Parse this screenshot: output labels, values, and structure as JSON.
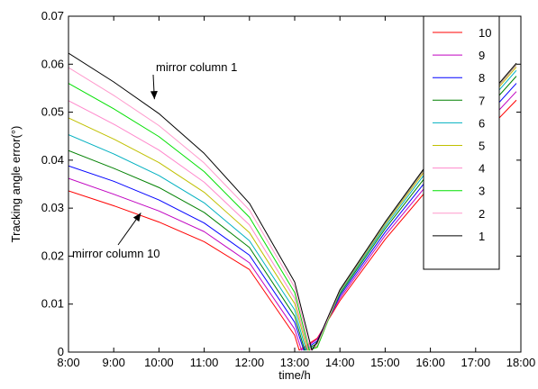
{
  "chart_data": {
    "type": "line",
    "xlabel": "time/h",
    "ylabel": "Tracking angle error(°)",
    "x_ticks": [
      "8:00",
      "9:00",
      "10:00",
      "11:00",
      "12:00",
      "13:00",
      "14:00",
      "15:00",
      "16:00",
      "17:00",
      "18:00"
    ],
    "y_ticks": [
      "0",
      "0.01",
      "0.02",
      "0.03",
      "0.04",
      "0.05",
      "0.06",
      "0.07"
    ],
    "xlim": [
      8.0,
      18.0
    ],
    "ylim": [
      0,
      0.07
    ],
    "grid": false,
    "legend_position": "top-right",
    "x": [
      8.0,
      9.0,
      10.0,
      11.0,
      12.0,
      13.0,
      13.5,
      14.0,
      15.0,
      16.0,
      17.0,
      17.9
    ],
    "series": [
      {
        "name": "10",
        "color": "#ff0000",
        "min_x": 13.1,
        "values": [
          0.0336,
          0.0305,
          0.0271,
          0.023,
          0.0172,
          0.0035,
          0.0029,
          0.0107,
          0.0235,
          0.0346,
          0.0437,
          0.0525
        ]
      },
      {
        "name": "9",
        "color": "#c000c0",
        "min_x": 13.15,
        "values": [
          0.0362,
          0.0329,
          0.0294,
          0.0251,
          0.0186,
          0.0048,
          0.0027,
          0.0112,
          0.0243,
          0.0357,
          0.0452,
          0.0543
        ]
      },
      {
        "name": "8",
        "color": "#0000ff",
        "min_x": 13.2,
        "values": [
          0.0388,
          0.0356,
          0.0317,
          0.0269,
          0.0202,
          0.0062,
          0.0023,
          0.0117,
          0.025,
          0.0368,
          0.0466,
          0.056
        ]
      },
      {
        "name": "7",
        "color": "#008000",
        "min_x": 13.22,
        "values": [
          0.042,
          0.0383,
          0.0343,
          0.0291,
          0.0218,
          0.0075,
          0.0018,
          0.0121,
          0.0257,
          0.0378,
          0.048,
          0.0575
        ]
      },
      {
        "name": "6",
        "color": "#00b0c0",
        "min_x": 13.25,
        "values": [
          0.0453,
          0.0413,
          0.0368,
          0.0311,
          0.0232,
          0.0088,
          0.0014,
          0.0124,
          0.0262,
          0.0387,
          0.049,
          0.0587
        ]
      },
      {
        "name": "5",
        "color": "#c0c000",
        "min_x": 13.28,
        "values": [
          0.0488,
          0.0444,
          0.0395,
          0.0333,
          0.0249,
          0.0101,
          0.0011,
          0.0126,
          0.0266,
          0.0393,
          0.0496,
          0.0594
        ]
      },
      {
        "name": "4",
        "color": "#ff88cc",
        "min_x": 13.3,
        "values": [
          0.0524,
          0.0475,
          0.0421,
          0.0354,
          0.0265,
          0.0112,
          0.001,
          0.0127,
          0.0268,
          0.0397,
          0.0499,
          0.0598
        ]
      },
      {
        "name": "3",
        "color": "#00e000",
        "min_x": 13.32,
        "values": [
          0.056,
          0.0507,
          0.0449,
          0.0376,
          0.0281,
          0.0124,
          0.001,
          0.0128,
          0.0269,
          0.0399,
          0.0501,
          0.06
        ]
      },
      {
        "name": "2",
        "color": "#ff99cc",
        "min_x": 13.35,
        "values": [
          0.0593,
          0.0535,
          0.0472,
          0.0394,
          0.0296,
          0.0135,
          0.0015,
          0.0129,
          0.027,
          0.04,
          0.0502,
          0.0601
        ]
      },
      {
        "name": "1",
        "color": "#000000",
        "min_x": 13.38,
        "values": [
          0.0623,
          0.0563,
          0.0497,
          0.0414,
          0.031,
          0.0146,
          0.0022,
          0.013,
          0.0271,
          0.0401,
          0.0503,
          0.0602
        ]
      }
    ],
    "annotations": [
      {
        "text": "mirror column 1",
        "point": [
          9.9,
          0.0527
        ]
      },
      {
        "text": "mirror column 10",
        "point": [
          9.6,
          0.029
        ]
      }
    ]
  }
}
